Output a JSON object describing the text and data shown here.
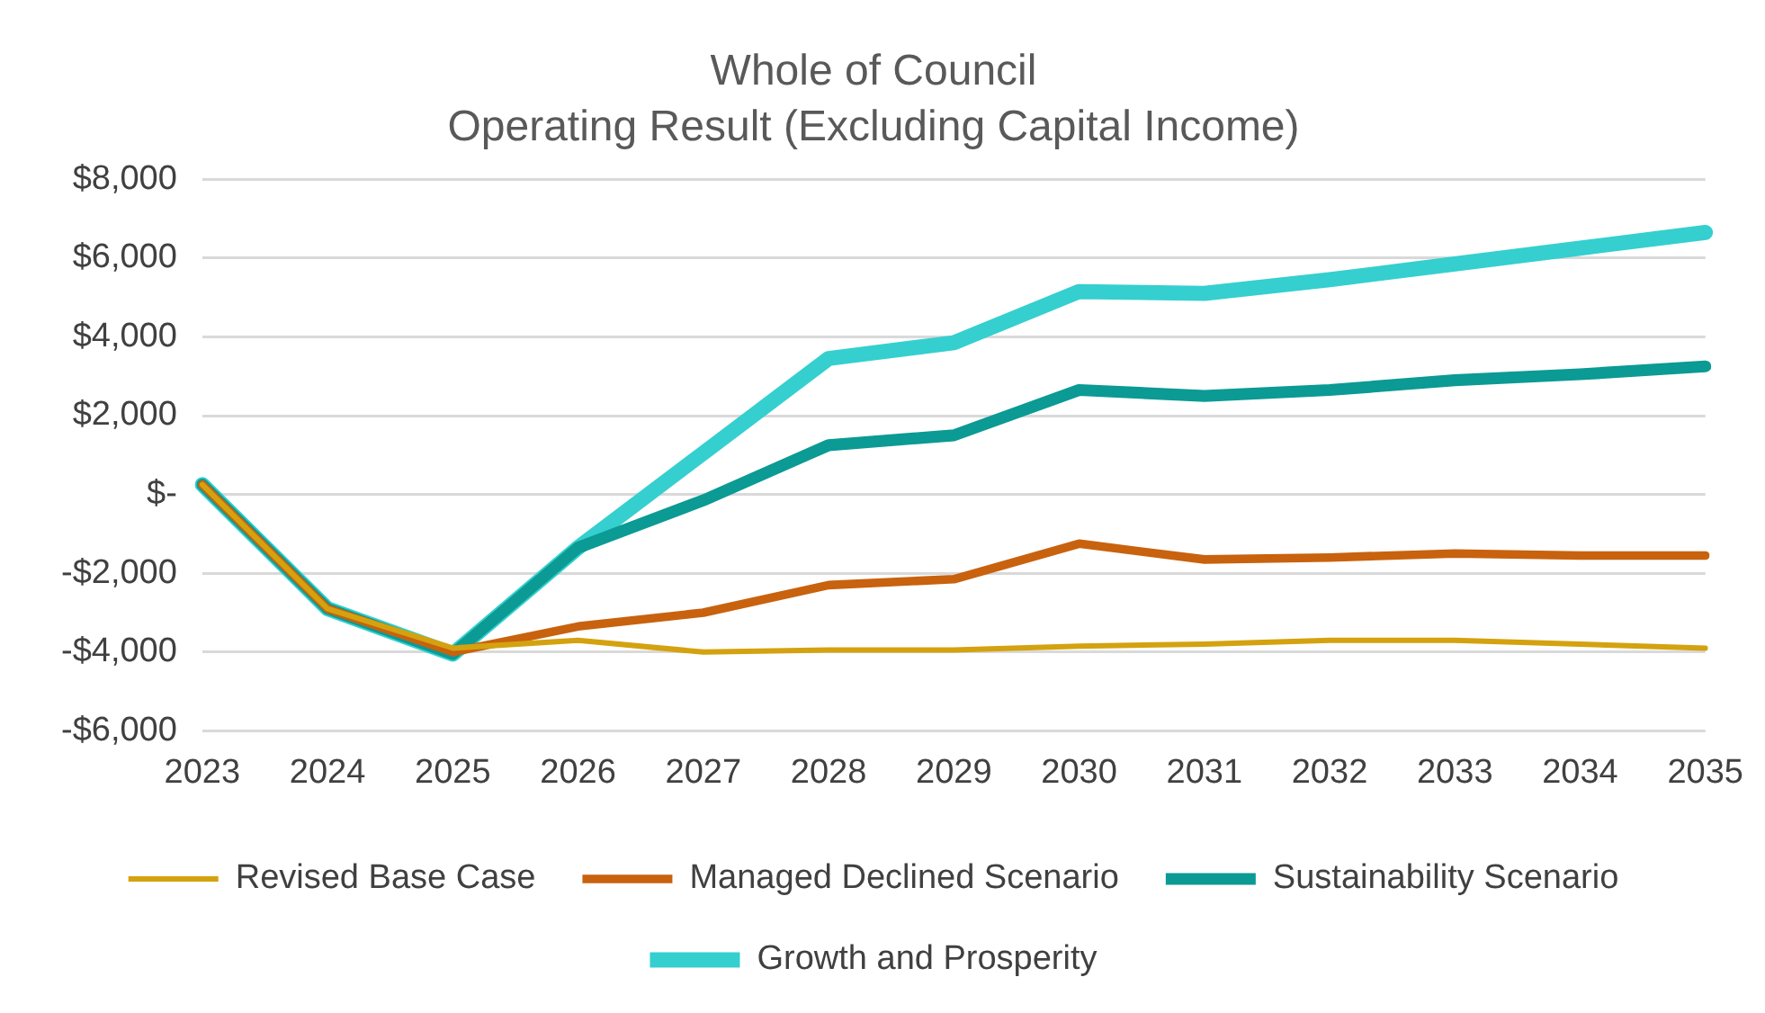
{
  "chart_data": {
    "type": "line",
    "title": "Whole of Council",
    "subtitle": "Operating Result (Excluding Capital Income)",
    "categories": [
      "2023",
      "2024",
      "2025",
      "2026",
      "2027",
      "2028",
      "2029",
      "2030",
      "2031",
      "2032",
      "2033",
      "2034",
      "2035"
    ],
    "ylim": [
      -6000,
      8000
    ],
    "yticks": [
      {
        "value": -6000,
        "label": "-$6,000"
      },
      {
        "value": -4000,
        "label": "-$4,000"
      },
      {
        "value": -2000,
        "label": "-$2,000"
      },
      {
        "value": 0,
        "label": "$-"
      },
      {
        "value": 2000,
        "label": "$2,000"
      },
      {
        "value": 4000,
        "label": "$4,000"
      },
      {
        "value": 6000,
        "label": "$6,000"
      },
      {
        "value": 8000,
        "label": "$8,000"
      }
    ],
    "grid": "y",
    "legend": "bottom",
    "marker": "none",
    "line_style": "solid",
    "series": [
      {
        "name": "Revised Base Case",
        "color": "#d4a20f",
        "values": [
          250,
          -2900,
          -3900,
          -3700,
          -4000,
          -3950,
          -3950,
          -3850,
          -3800,
          -3700,
          -3700,
          -3800,
          -3900
        ]
      },
      {
        "name": "Managed Declined Scenario",
        "color": "#c8620e",
        "values": [
          250,
          -2900,
          -4000,
          -3350,
          -3000,
          -2300,
          -2150,
          -1250,
          -1650,
          -1600,
          -1500,
          -1550,
          -1550
        ]
      },
      {
        "name": "Sustainability Scenario",
        "color": "#0b9a94",
        "values": [
          250,
          -2900,
          -4050,
          -1350,
          -150,
          1250,
          1500,
          2650,
          2500,
          2650,
          2900,
          3050,
          3250
        ]
      },
      {
        "name": "Growth and Prosperity",
        "color": "#35cfcf",
        "values": [
          250,
          -2900,
          -4050,
          -1350,
          1050,
          3450,
          3850,
          5150,
          5100,
          5450,
          5850,
          6250,
          6650
        ]
      }
    ]
  }
}
